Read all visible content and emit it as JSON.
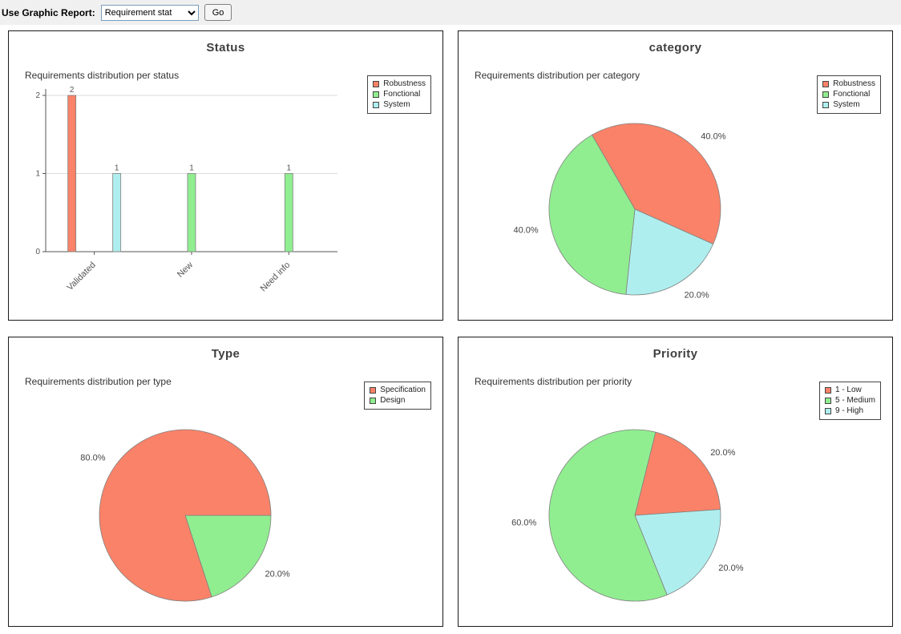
{
  "toolbar": {
    "label": "Use Graphic Report:",
    "select_value": "Requirement stat",
    "go_label": "Go"
  },
  "chart_data": [
    {
      "type": "bar",
      "panel_title": "Status",
      "title": "Requirements distribution per status",
      "categories": [
        "Validated",
        "New",
        "Need info"
      ],
      "series": [
        {
          "name": "Robustness",
          "color": "#FA8268",
          "values": [
            2,
            0,
            0
          ]
        },
        {
          "name": "Fonctional",
          "color": "#90EE90",
          "values": [
            0,
            1,
            1
          ]
        },
        {
          "name": "System",
          "color": "#AFEEEE",
          "values": [
            1,
            0,
            0
          ]
        }
      ],
      "ylim": [
        0,
        2
      ],
      "yticks": [
        0,
        1,
        2
      ],
      "grid": "horizontal",
      "legend_position": "top-right"
    },
    {
      "type": "pie",
      "panel_title": "category",
      "title": "Requirements distribution per category",
      "legend": [
        {
          "label": "Robustness",
          "color": "#FA8268"
        },
        {
          "label": "Fonctional",
          "color": "#90EE90"
        },
        {
          "label": "System",
          "color": "#AFEEEE"
        }
      ],
      "start_angle": -30,
      "slices": [
        {
          "label": "Robustness",
          "value": 40,
          "display": "40.0%",
          "color": "#FA8268"
        },
        {
          "label": "System",
          "value": 20,
          "display": "20.0%",
          "color": "#AFEEEE"
        },
        {
          "label": "Fonctional",
          "value": 40,
          "display": "40.0%",
          "color": "#90EE90"
        }
      ],
      "legend_position": "top-right"
    },
    {
      "type": "pie",
      "panel_title": "Type",
      "title": "Requirements distribution per type",
      "legend": [
        {
          "label": "Specification",
          "color": "#FA8268"
        },
        {
          "label": "Design",
          "color": "#90EE90"
        }
      ],
      "start_angle": 90,
      "slices": [
        {
          "label": "Design",
          "value": 20,
          "display": "20.0%",
          "color": "#90EE90"
        },
        {
          "label": "Specification",
          "value": 80,
          "display": "80.0%",
          "color": "#FA8268"
        }
      ],
      "legend_position": "top-right"
    },
    {
      "type": "pie",
      "panel_title": "Priority",
      "title": "Requirements distribution per priority",
      "legend": [
        {
          "label": "1 - Low",
          "color": "#FA8268"
        },
        {
          "label": "5 - Medium",
          "color": "#90EE90"
        },
        {
          "label": "9 - High",
          "color": "#AFEEEE"
        }
      ],
      "start_angle": 14,
      "slices": [
        {
          "label": "1 - Low",
          "value": 20,
          "display": "20.0%",
          "color": "#FA8268"
        },
        {
          "label": "9 - High",
          "value": 20,
          "display": "20.0%",
          "color": "#AFEEEE"
        },
        {
          "label": "5 - Medium",
          "value": 60,
          "display": "60.0%",
          "color": "#90EE90"
        }
      ],
      "legend_position": "top-right"
    }
  ]
}
